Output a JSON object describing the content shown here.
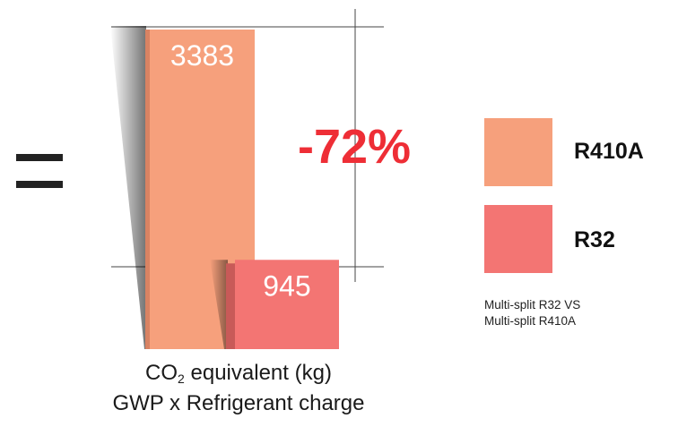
{
  "chart_data": {
    "type": "bar",
    "categories": [
      "R410A",
      "R32"
    ],
    "values": [
      3383,
      945
    ],
    "data_labels": [
      "3383",
      "945"
    ],
    "change_label": "-72%",
    "ylim": [
      0,
      3383
    ],
    "colors": {
      "R410A": "#f6a07c",
      "R32": "#f37573"
    },
    "xlabel_line1_prefix": "CO",
    "xlabel_line1_subscript": "2",
    "xlabel_line1_suffix": " equivalent (kg)",
    "xlabel_line2": "GWP x Refrigerant charge",
    "legend": [
      {
        "label": "R410A",
        "color": "#f6a07c"
      },
      {
        "label": "R32",
        "color": "#f37573"
      }
    ],
    "legend_placement": "right",
    "note_line1": "Multi-split R32 VS",
    "note_line2": "Multi-split R410A",
    "grid": false
  },
  "colors": {
    "change_label": "#ee2e36",
    "equals_sign": "#222222"
  }
}
